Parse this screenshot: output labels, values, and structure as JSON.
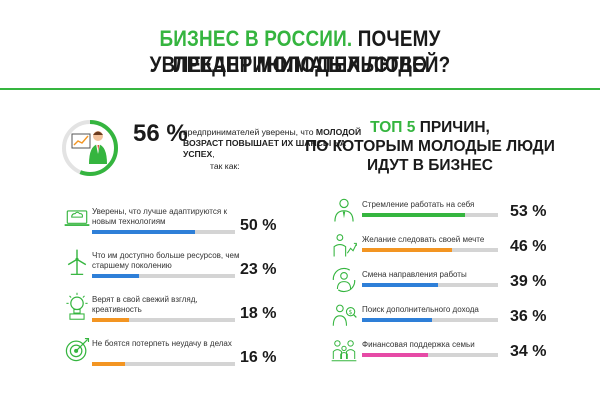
{
  "title": {
    "line1_green": "БИЗНЕС В РОССИИ.",
    "line1_black": "ПОЧЕМУ ПРЕДПРИНИМАТЕЛЬСТВО",
    "line2": "УВЛЕКАЕТ МОЛОДЫХ ЛЮДЕЙ?"
  },
  "intro": {
    "percent": "56 %",
    "text_normal1": "предпринимателей уверены, что",
    "text_bold": "молодой возраст повышает их шансы на успех",
    "text_tail": "так как:",
    "ring_fraction": 0.56
  },
  "right_title": {
    "green": "ТОП 5",
    "rest1": "ПРИЧИН,",
    "line2": "ПО КОТОРЫМ МОЛОДЫЕ ЛЮДИ",
    "line3": "ИДУТ В БИЗНЕС"
  },
  "colors": {
    "green": "#35b53f",
    "blue": "#2e7fd8",
    "orange": "#f39522",
    "pink": "#e64aa6",
    "track": "#d4d4d4"
  },
  "chart_data": [
    {
      "type": "bar",
      "categories": [
        "Уверены, что лучше адаптируются к новым технологиям",
        "Что им доступно больше ресурсов, чем старшему поколению",
        "Верят в свой свежий взгляд, креативность",
        "Не боятся потерпеть неудачу в делах"
      ],
      "values": [
        50,
        23,
        18,
        16
      ],
      "labels": [
        "50 %",
        "23 %",
        "18 %",
        "16 %"
      ],
      "ylim": [
        0,
        100
      ],
      "icons": [
        "cloud-devices-icon",
        "wind-turbine-icon",
        "lightbulb-icon",
        "target-icon"
      ]
    },
    {
      "type": "bar",
      "categories": [
        "Стремление работать на себя",
        "Желание следовать своей мечте",
        "Смена направления работы",
        "Поиск дополнительного дохода",
        "Финансовая поддержка семьи"
      ],
      "values": [
        53,
        46,
        39,
        36,
        34
      ],
      "labels": [
        "53 %",
        "46 %",
        "39 %",
        "36 %",
        "34 %"
      ],
      "ylim": [
        0,
        100
      ],
      "icons": [
        "businessman-icon",
        "dream-growth-icon",
        "change-direction-icon",
        "income-search-icon",
        "family-icon"
      ]
    }
  ]
}
